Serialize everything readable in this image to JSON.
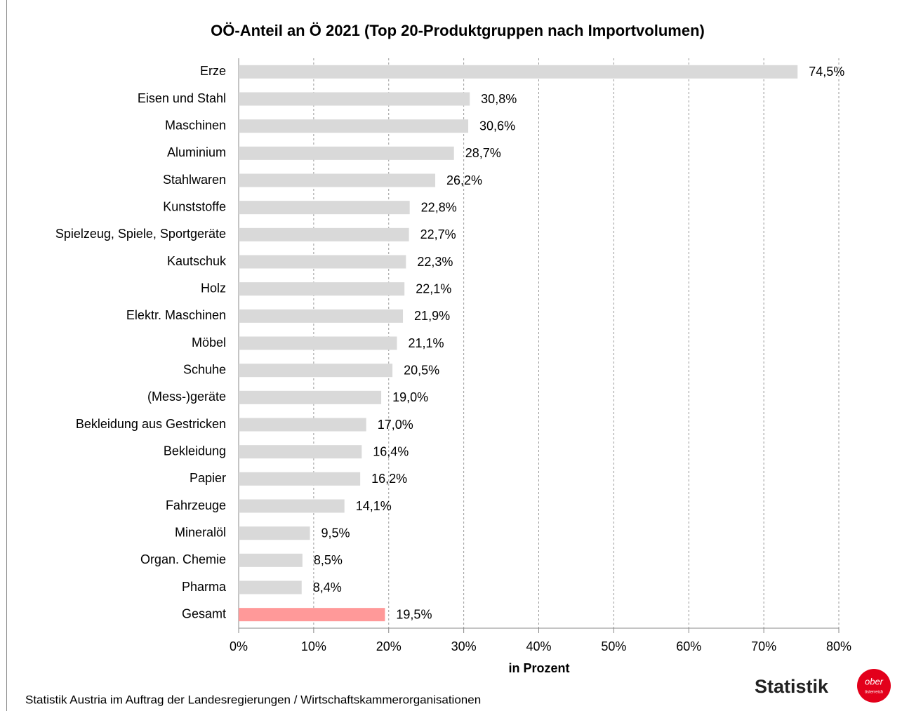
{
  "chart_data": {
    "type": "bar",
    "orientation": "horizontal",
    "title": "OÖ-Anteil an Ö 2021 (Top 20-Produktgruppen nach Importvolumen)",
    "categories": [
      "Erze",
      "Eisen und Stahl",
      "Maschinen",
      "Aluminium",
      "Stahlwaren",
      "Kunststoffe",
      "Spielzeug, Spiele, Sportgeräte",
      "Kautschuk",
      "Holz",
      "Elektr. Maschinen",
      "Möbel",
      "Schuhe",
      "(Mess-)geräte",
      "Bekleidung aus Gestricken",
      "Bekleidung",
      "Papier",
      "Fahrzeuge",
      "Mineralöl",
      "Organ. Chemie",
      "Pharma",
      "Gesamt"
    ],
    "values": [
      74.5,
      30.8,
      30.6,
      28.7,
      26.2,
      22.8,
      22.7,
      22.3,
      22.1,
      21.9,
      21.1,
      20.5,
      19.0,
      17.0,
      16.4,
      16.2,
      14.1,
      9.5,
      8.5,
      8.4,
      19.5
    ],
    "value_labels": [
      "74,5%",
      "30,8%",
      "30,6%",
      "28,7%",
      "26,2%",
      "22,8%",
      "22,7%",
      "22,3%",
      "22,1%",
      "21,9%",
      "21,1%",
      "20,5%",
      "19,0%",
      "17,0%",
      "16,4%",
      "16,2%",
      "14,1%",
      "9,5%",
      "8,5%",
      "8,4%",
      "19,5%"
    ],
    "colors": [
      "#d9d9d9",
      "#d9d9d9",
      "#d9d9d9",
      "#d9d9d9",
      "#d9d9d9",
      "#d9d9d9",
      "#d9d9d9",
      "#d9d9d9",
      "#d9d9d9",
      "#d9d9d9",
      "#d9d9d9",
      "#d9d9d9",
      "#d9d9d9",
      "#d9d9d9",
      "#d9d9d9",
      "#d9d9d9",
      "#d9d9d9",
      "#d9d9d9",
      "#d9d9d9",
      "#d9d9d9",
      "#ff9999"
    ],
    "xlim": [
      0,
      80
    ],
    "xticks": [
      {
        "value": 0,
        "label": "0%"
      },
      {
        "value": 10,
        "label": "10%"
      },
      {
        "value": 20,
        "label": "20%"
      },
      {
        "value": 30,
        "label": "30%"
      },
      {
        "value": 40,
        "label": "40%"
      },
      {
        "value": 50,
        "label": "50%"
      },
      {
        "value": 60,
        "label": "60%"
      },
      {
        "value": 70,
        "label": "70%"
      },
      {
        "value": 80,
        "label": "80%"
      }
    ],
    "xlabel": "in Prozent",
    "grid": true,
    "source": "Statistik Austria im Auftrag der Landesregierungen / Wirtschaftskammerorganisationen",
    "logo": {
      "text": "Statistik",
      "badge": [
        "ober",
        "österreich"
      ]
    }
  }
}
